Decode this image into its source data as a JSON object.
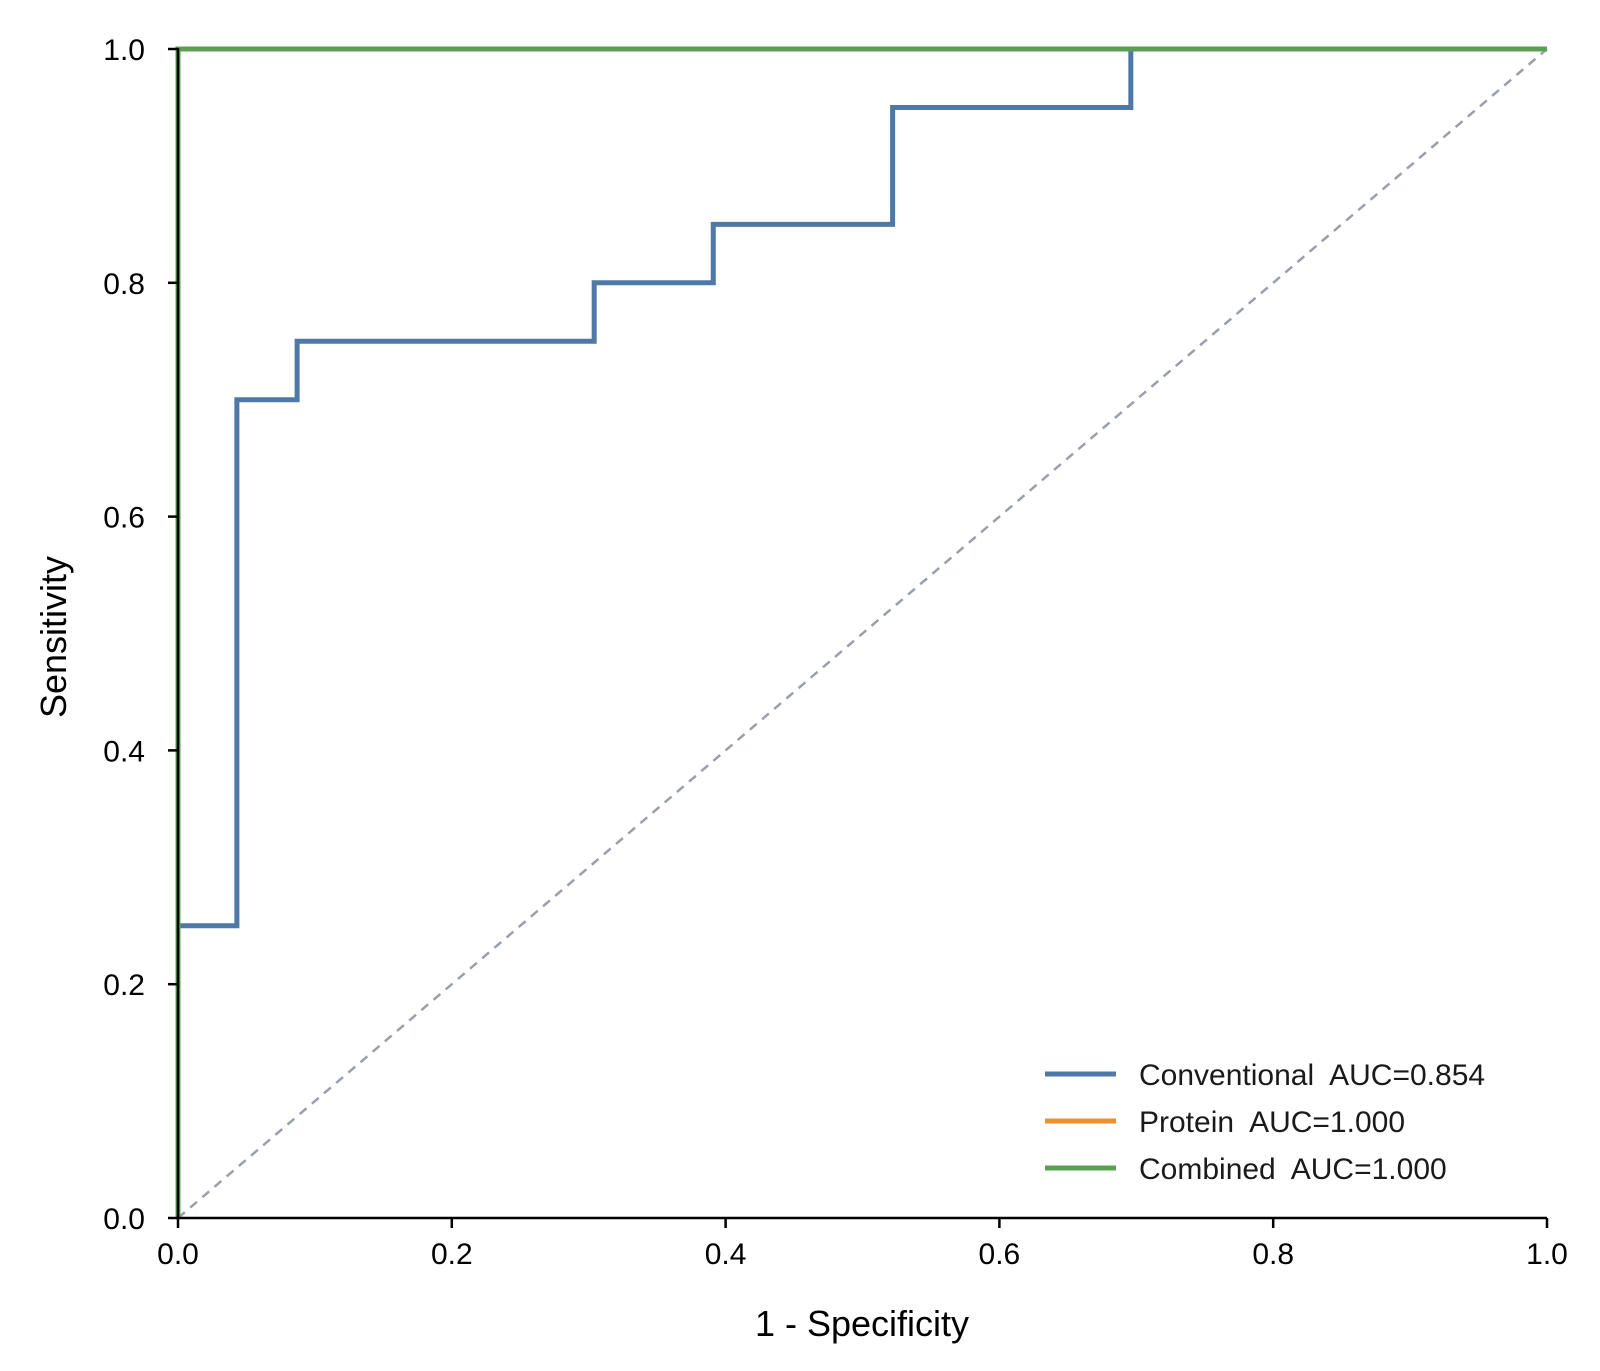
{
  "chart_data": {
    "type": "line",
    "title": "",
    "xlabel": "1 - Specificity",
    "ylabel": "Sensitivity",
    "xlim": [
      0,
      1
    ],
    "ylim": [
      0,
      1
    ],
    "x_ticks": [
      "0.0",
      "0.2",
      "0.4",
      "0.6",
      "0.8",
      "1.0"
    ],
    "y_ticks": [
      "0.0",
      "0.2",
      "0.4",
      "0.6",
      "0.8",
      "1.0"
    ],
    "grid": false,
    "legend_position": "bottom-right",
    "reference_line": {
      "x": [
        0,
        1
      ],
      "y": [
        0,
        1
      ],
      "style": "dashed",
      "color": "#9aa0ab"
    },
    "series": [
      {
        "name": "Conventional",
        "legend_label": "Conventional  AUC=0.854",
        "auc": 0.854,
        "color": "#4e79a7",
        "x": [
          0,
          0,
          0.043,
          0.043,
          0.087,
          0.087,
          0.304,
          0.304,
          0.391,
          0.391,
          0.522,
          0.522,
          0.696,
          0.696,
          1
        ],
        "y": [
          0,
          0.25,
          0.25,
          0.7,
          0.7,
          0.75,
          0.75,
          0.8,
          0.8,
          0.85,
          0.85,
          0.95,
          0.95,
          1.0,
          1.0
        ]
      },
      {
        "name": "Protein",
        "legend_label": "Protein  AUC=1.000",
        "auc": 1.0,
        "color": "#f28e2b",
        "x": [
          0,
          0,
          1
        ],
        "y": [
          0,
          1,
          1
        ]
      },
      {
        "name": "Combined",
        "legend_label": "Combined  AUC=1.000",
        "auc": 1.0,
        "color": "#59a14f",
        "x": [
          0,
          0,
          1
        ],
        "y": [
          0,
          1,
          1
        ]
      }
    ]
  }
}
